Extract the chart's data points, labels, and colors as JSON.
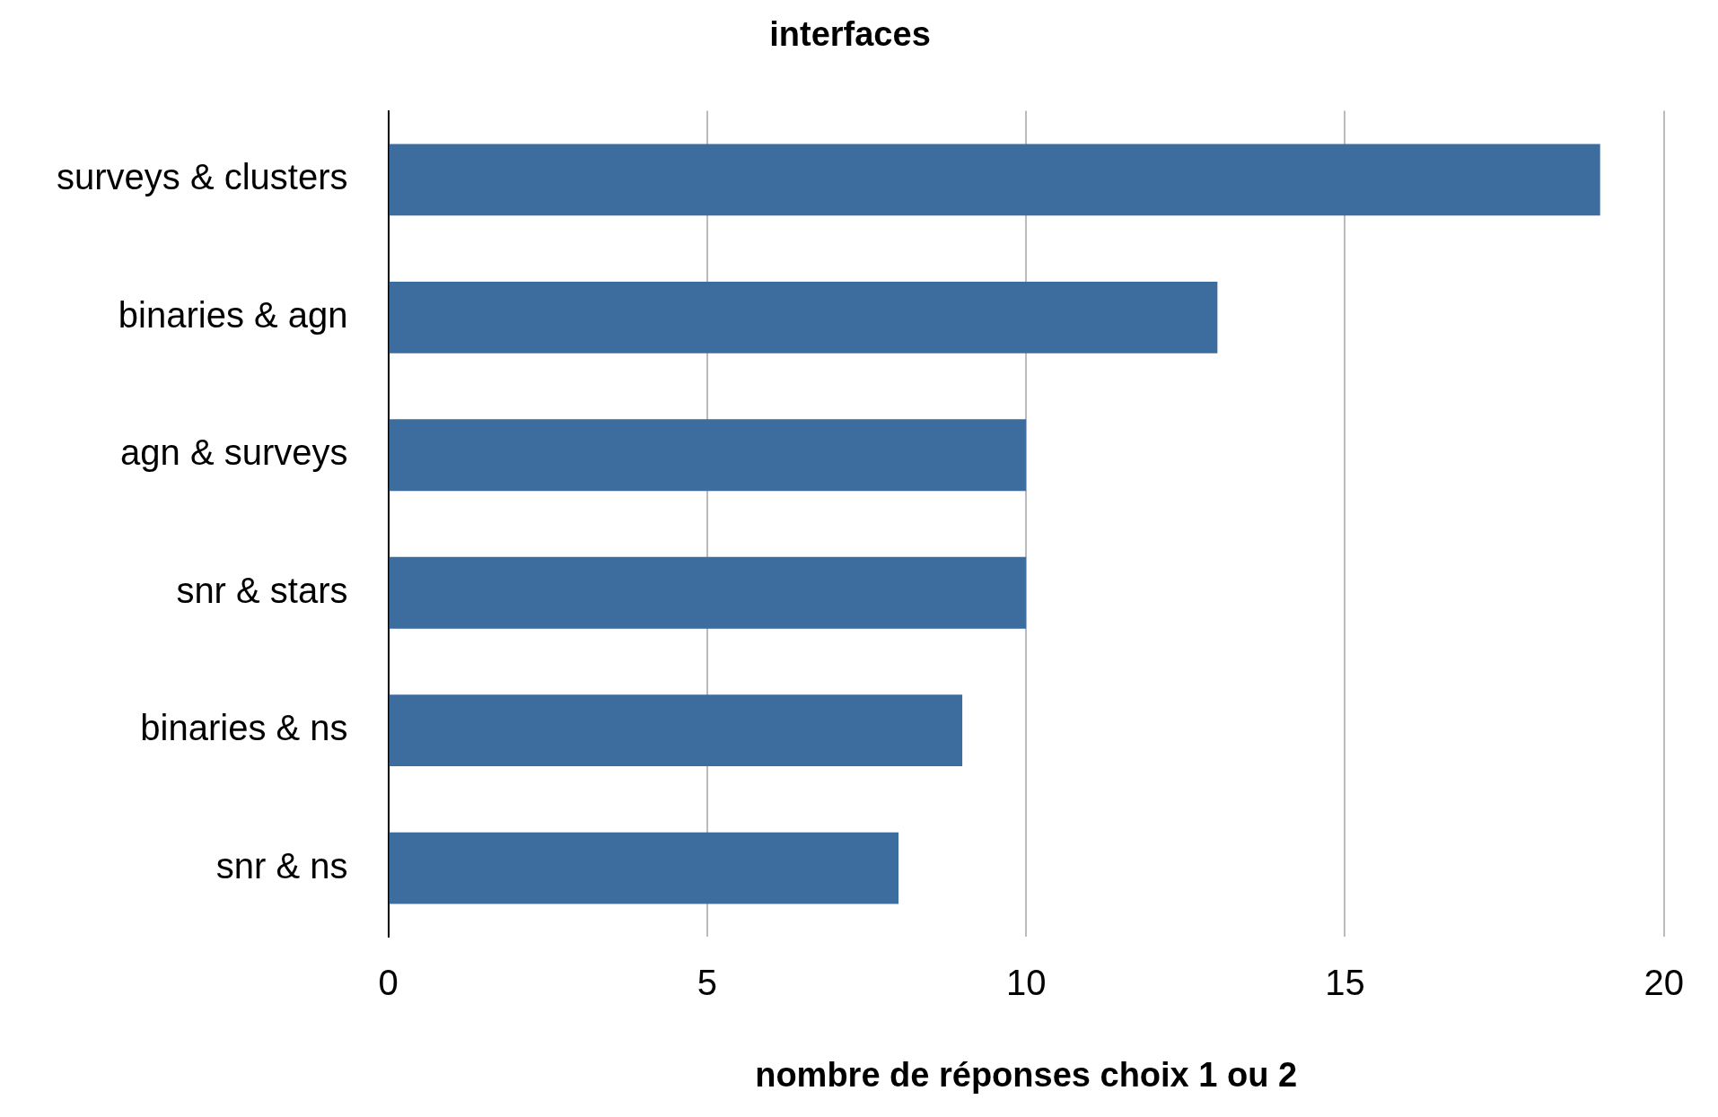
{
  "chart_data": {
    "type": "bar",
    "orientation": "horizontal",
    "title": "interfaces",
    "xlabel": "nombre de réponses choix 1 ou 2",
    "categories": [
      "surveys & clusters",
      "binaries & agn",
      "agn & surveys",
      "snr & stars",
      "binaries & ns",
      "snr & ns"
    ],
    "values": [
      19,
      13,
      10,
      10,
      9,
      8
    ],
    "color": "#3d6c9e",
    "xlim": [
      0,
      20
    ],
    "xticks": [
      0,
      5,
      10,
      15,
      20
    ],
    "grid": "x",
    "legend": false
  }
}
